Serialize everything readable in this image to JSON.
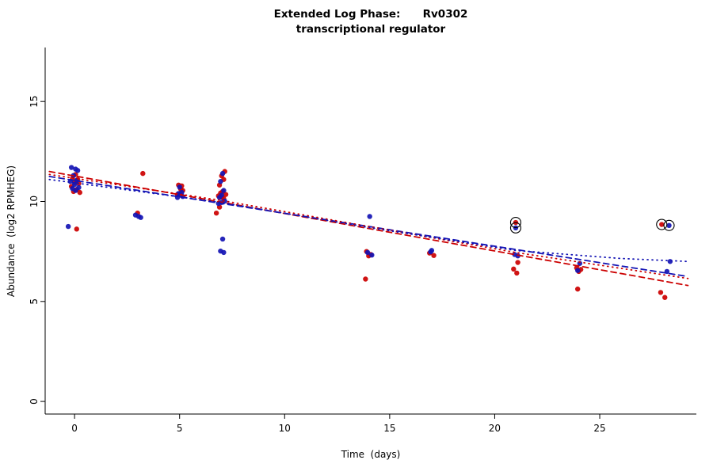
{
  "figure": {
    "title_line1": "Extended Log Phase:      Rv0302",
    "title_line2": "transcriptional regulator",
    "xlabel": "Time  (days)",
    "ylabel": "Abundance  (log2 RPMHEG)"
  },
  "chart_data": {
    "type": "scatter",
    "title": "Extended Log Phase: Rv0302 — transcriptional regulator",
    "xlabel": "Time (days)",
    "ylabel": "Abundance (log2 RPMHEG)",
    "xlim": [
      -1.4,
      29.6
    ],
    "ylim": [
      -0.63,
      17.7
    ],
    "xticks": [
      0,
      5,
      10,
      15,
      20,
      25
    ],
    "yticks": [
      0,
      5,
      10,
      15
    ],
    "grid": false,
    "legend": "none",
    "series": [
      {
        "name": "red-condition",
        "color": "#cc0000",
        "points": [
          [
            0.05,
            11.35
          ],
          [
            -0.1,
            11.15
          ],
          [
            0.15,
            11.1
          ],
          [
            0,
            10.95
          ],
          [
            0.2,
            10.9
          ],
          [
            -0.15,
            10.75
          ],
          [
            0.1,
            10.6
          ],
          [
            -0.05,
            10.5
          ],
          [
            0.25,
            10.45
          ],
          [
            0.1,
            8.62
          ],
          [
            3.0,
            9.42
          ],
          [
            3.25,
            11.4
          ],
          [
            4.95,
            10.82
          ],
          [
            5.1,
            10.78
          ],
          [
            5.05,
            10.62
          ],
          [
            5.15,
            10.55
          ],
          [
            4.9,
            10.35
          ],
          [
            7.15,
            11.5
          ],
          [
            7.0,
            11.28
          ],
          [
            7.1,
            11.1
          ],
          [
            6.9,
            10.82
          ],
          [
            7.05,
            10.5
          ],
          [
            6.95,
            10.42
          ],
          [
            7.2,
            10.35
          ],
          [
            6.85,
            10.28
          ],
          [
            7.0,
            10.22
          ],
          [
            7.1,
            10.15
          ],
          [
            6.9,
            9.72
          ],
          [
            6.75,
            9.42
          ],
          [
            13.9,
            7.5
          ],
          [
            14.1,
            7.35
          ],
          [
            14.0,
            7.28
          ],
          [
            13.85,
            6.12
          ],
          [
            16.9,
            7.42
          ],
          [
            17.1,
            7.3
          ],
          [
            21.0,
            8.95
          ],
          [
            21.1,
            6.95
          ],
          [
            20.9,
            6.62
          ],
          [
            21.05,
            6.42
          ],
          [
            23.9,
            6.68
          ],
          [
            24.1,
            6.6
          ],
          [
            24.0,
            6.5
          ],
          [
            23.95,
            5.62
          ],
          [
            27.95,
            8.85
          ],
          [
            27.9,
            5.45
          ],
          [
            28.1,
            5.2
          ]
        ]
      },
      {
        "name": "blue-condition",
        "color": "#1414b4",
        "points": [
          [
            -0.15,
            11.7
          ],
          [
            0.05,
            11.62
          ],
          [
            0.15,
            11.55
          ],
          [
            -0.05,
            11.3
          ],
          [
            0.1,
            11.05
          ],
          [
            -0.2,
            11.0
          ],
          [
            0,
            10.85
          ],
          [
            0.2,
            10.7
          ],
          [
            -0.1,
            10.65
          ],
          [
            0.05,
            10.55
          ],
          [
            -0.3,
            8.75
          ],
          [
            2.9,
            9.32
          ],
          [
            3.05,
            9.25
          ],
          [
            3.15,
            9.2
          ],
          [
            5.0,
            10.72
          ],
          [
            5.1,
            10.45
          ],
          [
            4.95,
            10.4
          ],
          [
            5.05,
            10.32
          ],
          [
            5.15,
            10.25
          ],
          [
            4.9,
            10.2
          ],
          [
            7.05,
            11.4
          ],
          [
            6.95,
            11.0
          ],
          [
            7.1,
            10.55
          ],
          [
            7.0,
            10.32
          ],
          [
            6.9,
            10.2
          ],
          [
            7.15,
            10.02
          ],
          [
            7.0,
            9.95
          ],
          [
            6.85,
            9.9
          ],
          [
            7.05,
            8.12
          ],
          [
            6.95,
            7.52
          ],
          [
            7.1,
            7.45
          ],
          [
            14.05,
            9.25
          ],
          [
            13.95,
            7.45
          ],
          [
            14.15,
            7.32
          ],
          [
            17.0,
            7.55
          ],
          [
            16.95,
            7.48
          ],
          [
            21.0,
            8.68
          ],
          [
            20.95,
            7.35
          ],
          [
            21.1,
            7.28
          ],
          [
            24.05,
            6.9
          ],
          [
            23.95,
            6.55
          ],
          [
            28.3,
            8.8
          ],
          [
            28.35,
            7.0
          ],
          [
            28.2,
            6.5
          ]
        ]
      }
    ],
    "circled_points": [
      {
        "x": 21.0,
        "y": 8.95
      },
      {
        "x": 21.0,
        "y": 8.68
      },
      {
        "x": 27.95,
        "y": 8.85
      },
      {
        "x": 28.3,
        "y": 8.8
      }
    ],
    "trend_lines": [
      {
        "name": "red-dashed-fit",
        "color": "#cc0000",
        "style": "dashed",
        "points": [
          [
            -1.2,
            11.5
          ],
          [
            29.2,
            5.8
          ]
        ]
      },
      {
        "name": "blue-dashed-fit",
        "color": "#1414b4",
        "style": "dashed",
        "points": [
          [
            -1.2,
            11.25
          ],
          [
            29.2,
            6.25
          ]
        ]
      },
      {
        "name": "red-dotted-fit",
        "color": "#cc0000",
        "style": "dotted",
        "points": [
          [
            -1.2,
            11.35
          ],
          [
            7,
            10.05
          ],
          [
            14,
            8.75
          ],
          [
            21,
            7.45
          ],
          [
            29.2,
            6.15
          ]
        ]
      },
      {
        "name": "blue-dotted-fit",
        "color": "#1414b4",
        "style": "dotted",
        "points": [
          [
            -1.2,
            11.1
          ],
          [
            7,
            9.95
          ],
          [
            14,
            8.7
          ],
          [
            21,
            7.55
          ],
          [
            26,
            7.15
          ],
          [
            29.2,
            7.0
          ]
        ]
      }
    ]
  }
}
